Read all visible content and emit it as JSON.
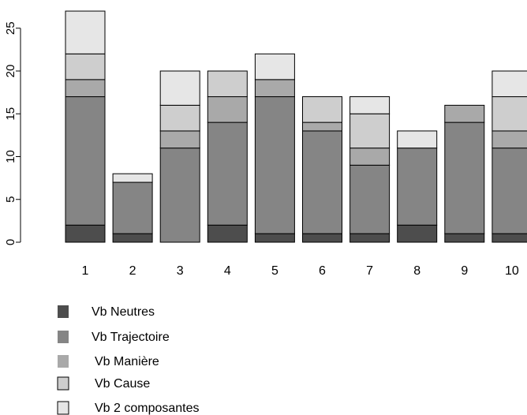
{
  "chart_data": {
    "type": "bar",
    "stacked": true,
    "categories": [
      "1",
      "2",
      "3",
      "4",
      "5",
      "6",
      "7",
      "8",
      "9",
      "10"
    ],
    "yticks": [
      "0",
      "5",
      "10",
      "15",
      "20",
      "25"
    ],
    "ylim": [
      0,
      27
    ],
    "series": [
      {
        "name": "Vb Neutres",
        "color": "#4d4d4d",
        "values": [
          2,
          1,
          0,
          2,
          1,
          1,
          1,
          2,
          1,
          1
        ]
      },
      {
        "name": "Vb Trajectoire",
        "color": "#858585",
        "values": [
          15,
          6,
          11,
          12,
          16,
          12,
          8,
          9,
          13,
          10
        ]
      },
      {
        "name": "Vb Manière",
        "color": "#a9a9a9",
        "values": [
          2,
          0,
          2,
          3,
          2,
          1,
          2,
          0,
          2,
          2
        ]
      },
      {
        "name": "Vb Cause",
        "color": "#cecece",
        "values": [
          3,
          0,
          3,
          3,
          0,
          3,
          4,
          0,
          0,
          4
        ]
      },
      {
        "name": "Vb 2 composantes",
        "color": "#e6e6e6",
        "values": [
          5,
          1,
          4,
          0,
          3,
          0,
          2,
          2,
          0,
          3
        ]
      }
    ],
    "legend_position": "bottom-left",
    "grid": false
  }
}
